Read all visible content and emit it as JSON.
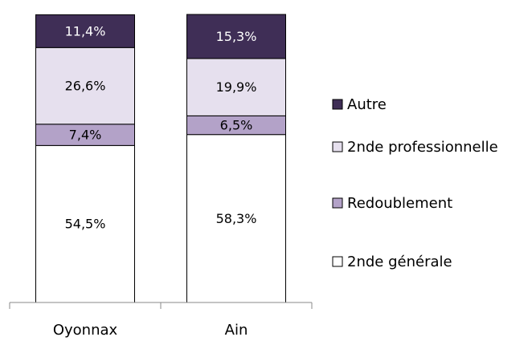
{
  "chart_data": {
    "type": "stacked_bar",
    "categories": [
      "Oyonnax",
      "Ain"
    ],
    "series": [
      {
        "name": "2nde générale",
        "color": "#ffffff",
        "values": [
          54.5,
          58.3
        ],
        "value_labels": [
          "54,5%",
          "58,3%"
        ]
      },
      {
        "name": "Redoublement",
        "color": "#b3a2c8",
        "values": [
          7.4,
          6.5
        ],
        "value_labels": [
          "7,4%",
          "6,5%"
        ]
      },
      {
        "name": "2nde professionnelle",
        "color": "#e6e0ee",
        "values": [
          26.6,
          19.9
        ],
        "value_labels": [
          "26,6%",
          "19,9%"
        ]
      },
      {
        "name": "Autre",
        "color": "#3f2e56",
        "values": [
          11.4,
          15.3
        ],
        "value_labels": [
          "11,4%",
          "15,3%"
        ]
      }
    ],
    "ylim": [
      0,
      100
    ]
  }
}
